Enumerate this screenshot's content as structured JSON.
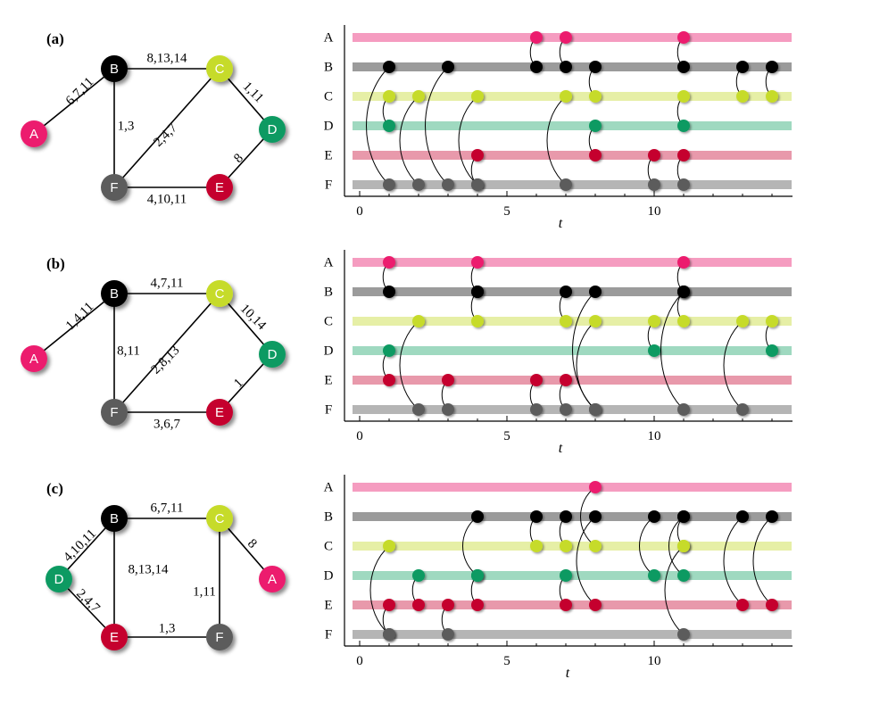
{
  "colors": {
    "A": "#ec1f6e",
    "B": "#000000",
    "C": "#c6db2a",
    "D": "#0e9a62",
    "E": "#c5002f",
    "F": "#5b5b5b"
  },
  "row_colors": {
    "A": "#f59cc0",
    "B": "#9b9b9b",
    "C": "#e6efa6",
    "D": "#9fd9c0",
    "E": "#e899ab",
    "F": "#b5b5b5"
  },
  "node_order": [
    "A",
    "B",
    "C",
    "D",
    "E",
    "F"
  ],
  "axis": {
    "ticks": [
      0,
      5,
      10
    ],
    "label": "t",
    "range": [
      0,
      14
    ]
  },
  "panels": [
    {
      "label": "(a)",
      "graph": {
        "nodes": [
          "A",
          "B",
          "C",
          "D",
          "E",
          "F"
        ],
        "edges": [
          {
            "u": "A",
            "v": "B",
            "label": "6,7,11"
          },
          {
            "u": "B",
            "v": "C",
            "label": "8,13,14"
          },
          {
            "u": "B",
            "v": "F",
            "label": "1,3"
          },
          {
            "u": "C",
            "v": "F",
            "label": "2,4,7"
          },
          {
            "u": "C",
            "v": "D",
            "label": "1,11"
          },
          {
            "u": "D",
            "v": "E",
            "label": "8"
          },
          {
            "u": "F",
            "v": "E",
            "label": "4,10,11"
          }
        ]
      },
      "contacts": [
        {
          "t": 1,
          "u": "B",
          "v": "F"
        },
        {
          "t": 1,
          "u": "C",
          "v": "D"
        },
        {
          "t": 2,
          "u": "C",
          "v": "F"
        },
        {
          "t": 3,
          "u": "B",
          "v": "F"
        },
        {
          "t": 4,
          "u": "C",
          "v": "F"
        },
        {
          "t": 4,
          "u": "F",
          "v": "E"
        },
        {
          "t": 6,
          "u": "A",
          "v": "B"
        },
        {
          "t": 7,
          "u": "A",
          "v": "B"
        },
        {
          "t": 7,
          "u": "C",
          "v": "F"
        },
        {
          "t": 8,
          "u": "B",
          "v": "C"
        },
        {
          "t": 8,
          "u": "D",
          "v": "E"
        },
        {
          "t": 10,
          "u": "F",
          "v": "E"
        },
        {
          "t": 11,
          "u": "A",
          "v": "B"
        },
        {
          "t": 11,
          "u": "C",
          "v": "D"
        },
        {
          "t": 11,
          "u": "F",
          "v": "E"
        },
        {
          "t": 13,
          "u": "B",
          "v": "C"
        },
        {
          "t": 14,
          "u": "B",
          "v": "C"
        }
      ]
    },
    {
      "label": "(b)",
      "graph": {
        "nodes": [
          "A",
          "B",
          "C",
          "D",
          "E",
          "F"
        ],
        "edges": [
          {
            "u": "A",
            "v": "B",
            "label": "1,4,11"
          },
          {
            "u": "B",
            "v": "C",
            "label": "4,7,11"
          },
          {
            "u": "B",
            "v": "F",
            "label": "8,11"
          },
          {
            "u": "C",
            "v": "F",
            "label": "2,8,13"
          },
          {
            "u": "C",
            "v": "D",
            "label": "10,14"
          },
          {
            "u": "D",
            "v": "E",
            "label": "1"
          },
          {
            "u": "F",
            "v": "E",
            "label": "3,6,7"
          }
        ]
      },
      "contacts": [
        {
          "t": 1,
          "u": "A",
          "v": "B"
        },
        {
          "t": 1,
          "u": "D",
          "v": "E"
        },
        {
          "t": 2,
          "u": "C",
          "v": "F"
        },
        {
          "t": 3,
          "u": "F",
          "v": "E"
        },
        {
          "t": 4,
          "u": "A",
          "v": "B"
        },
        {
          "t": 4,
          "u": "B",
          "v": "C"
        },
        {
          "t": 6,
          "u": "F",
          "v": "E"
        },
        {
          "t": 7,
          "u": "B",
          "v": "C"
        },
        {
          "t": 7,
          "u": "F",
          "v": "E"
        },
        {
          "t": 8,
          "u": "B",
          "v": "F"
        },
        {
          "t": 8,
          "u": "C",
          "v": "F"
        },
        {
          "t": 10,
          "u": "C",
          "v": "D"
        },
        {
          "t": 11,
          "u": "A",
          "v": "B"
        },
        {
          "t": 11,
          "u": "B",
          "v": "C"
        },
        {
          "t": 11,
          "u": "B",
          "v": "F"
        },
        {
          "t": 13,
          "u": "C",
          "v": "F"
        },
        {
          "t": 14,
          "u": "C",
          "v": "D"
        }
      ]
    },
    {
      "label": "(c)",
      "graph": {
        "nodes": [
          "B",
          "C",
          "D",
          "A",
          "E",
          "F"
        ],
        "edges": [
          {
            "u": "D",
            "v": "B",
            "label": "4,10,11"
          },
          {
            "u": "B",
            "v": "C",
            "label": "6,7,11"
          },
          {
            "u": "B",
            "v": "E",
            "label": "8,13,14"
          },
          {
            "u": "C",
            "v": "A",
            "label": "8"
          },
          {
            "u": "C",
            "v": "F",
            "label": "1,11"
          },
          {
            "u": "D",
            "v": "E",
            "label": "2,4,7"
          },
          {
            "u": "E",
            "v": "F",
            "label": "1,3"
          }
        ]
      },
      "contacts": [
        {
          "t": 1,
          "u": "C",
          "v": "F"
        },
        {
          "t": 1,
          "u": "E",
          "v": "F"
        },
        {
          "t": 2,
          "u": "D",
          "v": "E"
        },
        {
          "t": 3,
          "u": "E",
          "v": "F"
        },
        {
          "t": 4,
          "u": "B",
          "v": "D"
        },
        {
          "t": 4,
          "u": "D",
          "v": "E"
        },
        {
          "t": 6,
          "u": "B",
          "v": "C"
        },
        {
          "t": 7,
          "u": "B",
          "v": "C"
        },
        {
          "t": 7,
          "u": "D",
          "v": "E"
        },
        {
          "t": 8,
          "u": "A",
          "v": "C"
        },
        {
          "t": 8,
          "u": "B",
          "v": "E"
        },
        {
          "t": 10,
          "u": "B",
          "v": "D"
        },
        {
          "t": 11,
          "u": "B",
          "v": "C"
        },
        {
          "t": 11,
          "u": "B",
          "v": "D"
        },
        {
          "t": 11,
          "u": "C",
          "v": "F"
        },
        {
          "t": 13,
          "u": "B",
          "v": "E"
        },
        {
          "t": 14,
          "u": "B",
          "v": "E"
        }
      ]
    }
  ]
}
